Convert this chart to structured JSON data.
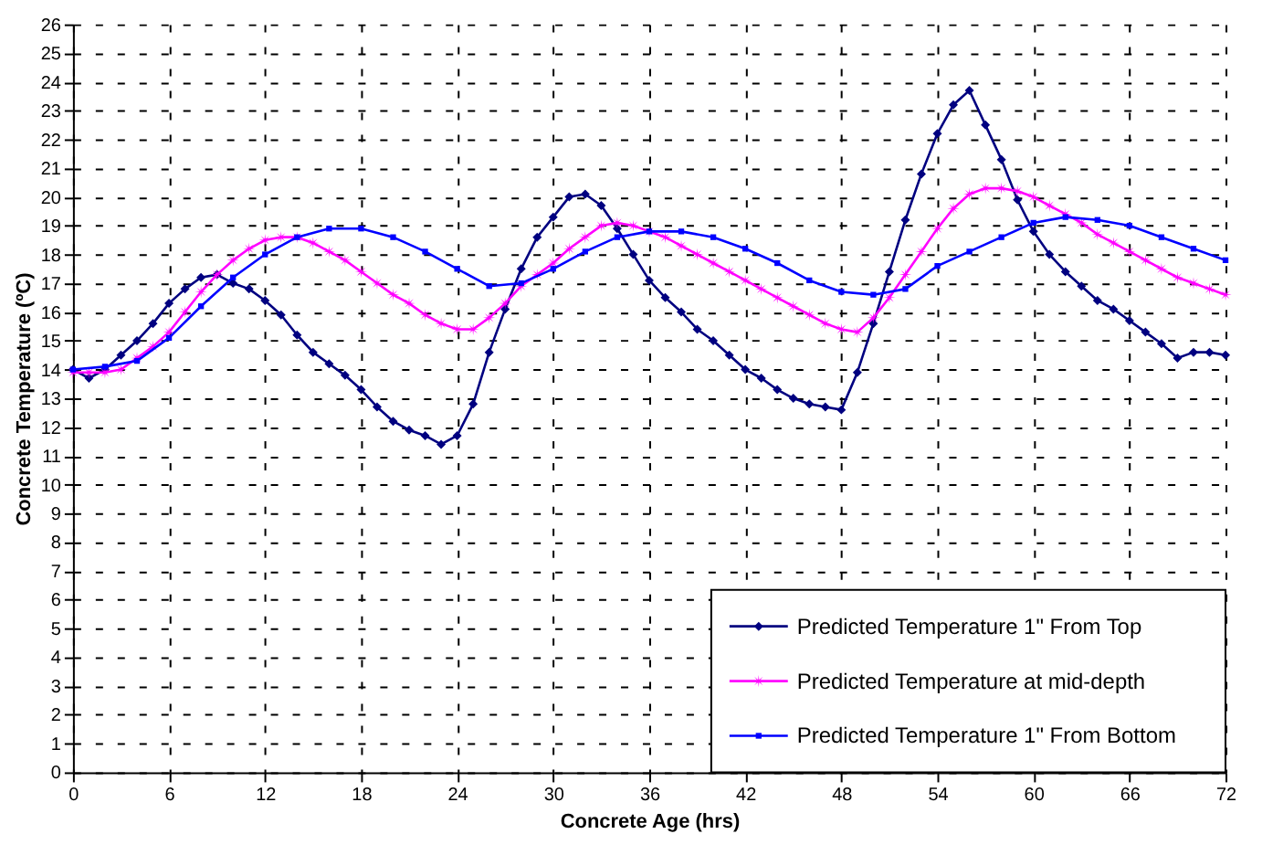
{
  "chart_data": {
    "type": "line",
    "xlabel": "Concrete Age (hrs)",
    "ylabel": "Concrete Temperature (ºC)",
    "xlim": [
      0,
      72
    ],
    "xticks": [
      0,
      6,
      12,
      18,
      24,
      30,
      36,
      42,
      48,
      54,
      60,
      66,
      72
    ],
    "ylim": [
      0,
      26
    ],
    "yticks": [
      0,
      1,
      2,
      3,
      4,
      5,
      6,
      7,
      8,
      9,
      10,
      11,
      12,
      13,
      14,
      15,
      16,
      17,
      18,
      19,
      20,
      21,
      22,
      23,
      24,
      25,
      26
    ],
    "grid": true,
    "legend": "bottom right",
    "line_style": "solid",
    "series": [
      {
        "name": "Predicted Temperature 1\" From Top",
        "color": "#000080",
        "marker": "diamond",
        "x": [
          0,
          1,
          2,
          3,
          4,
          5,
          6,
          7,
          8,
          9,
          10,
          11,
          12,
          13,
          14,
          15,
          16,
          17,
          18,
          19,
          20,
          21,
          22,
          23,
          24,
          25,
          26,
          27,
          28,
          29,
          30,
          31,
          32,
          33,
          34,
          35,
          36,
          37,
          38,
          39,
          40,
          41,
          42,
          43,
          44,
          45,
          46,
          47,
          48,
          49,
          50,
          51,
          52,
          53,
          54,
          55,
          56,
          57,
          58,
          59,
          60,
          61,
          62,
          63,
          64,
          65,
          66,
          67,
          68,
          69,
          70,
          71,
          72
        ],
        "values": [
          14.0,
          13.7,
          14.0,
          14.5,
          15.0,
          15.6,
          16.3,
          16.8,
          17.2,
          17.3,
          17.0,
          16.8,
          16.4,
          15.9,
          15.2,
          14.6,
          14.2,
          13.8,
          13.3,
          12.7,
          12.2,
          11.9,
          11.7,
          11.4,
          11.7,
          12.8,
          14.6,
          16.1,
          17.5,
          18.6,
          19.3,
          20.0,
          20.1,
          19.7,
          18.9,
          18.0,
          17.1,
          16.5,
          16.0,
          15.4,
          15.0,
          14.5,
          14.0,
          13.7,
          13.3,
          13.0,
          12.8,
          12.7,
          12.6,
          13.9,
          15.6,
          17.4,
          19.2,
          20.8,
          22.2,
          23.2,
          23.7,
          22.5,
          21.3,
          19.9,
          18.8,
          18.0,
          17.4,
          16.9,
          16.4,
          16.1,
          15.7,
          15.3,
          14.9,
          14.4,
          14.6,
          14.6,
          14.5
        ]
      },
      {
        "name": "Predicted Temperature at mid-depth",
        "color": "#ff00ff",
        "marker": "star",
        "x": [
          0,
          1,
          2,
          3,
          4,
          5,
          6,
          7,
          8,
          9,
          10,
          11,
          12,
          13,
          14,
          15,
          16,
          17,
          18,
          19,
          20,
          21,
          22,
          23,
          24,
          25,
          26,
          27,
          28,
          29,
          30,
          31,
          32,
          33,
          34,
          35,
          36,
          37,
          38,
          39,
          40,
          41,
          42,
          43,
          44,
          45,
          46,
          47,
          48,
          49,
          50,
          51,
          52,
          53,
          54,
          55,
          56,
          57,
          58,
          59,
          60,
          61,
          62,
          63,
          64,
          65,
          66,
          67,
          68,
          69,
          70,
          71,
          72
        ],
        "values": [
          13.9,
          13.9,
          13.9,
          14.0,
          14.4,
          14.8,
          15.3,
          16.0,
          16.7,
          17.3,
          17.8,
          18.2,
          18.5,
          18.6,
          18.6,
          18.4,
          18.1,
          17.8,
          17.4,
          17.0,
          16.6,
          16.3,
          15.9,
          15.6,
          15.4,
          15.4,
          15.8,
          16.3,
          16.9,
          17.3,
          17.7,
          18.2,
          18.6,
          19.0,
          19.1,
          19.0,
          18.8,
          18.6,
          18.3,
          18.0,
          17.7,
          17.4,
          17.1,
          16.8,
          16.5,
          16.2,
          15.9,
          15.6,
          15.4,
          15.3,
          15.8,
          16.5,
          17.3,
          18.1,
          18.9,
          19.6,
          20.1,
          20.3,
          20.3,
          20.2,
          20.0,
          19.7,
          19.4,
          19.1,
          18.7,
          18.4,
          18.1,
          17.8,
          17.5,
          17.2,
          17.0,
          16.8,
          16.6
        ]
      },
      {
        "name": "Predicted Temperature 1\" From Bottom",
        "color": "#0000ff",
        "marker": "square",
        "x": [
          0,
          2,
          4,
          6,
          8,
          10,
          12,
          14,
          16,
          18,
          20,
          22,
          24,
          26,
          28,
          30,
          32,
          34,
          36,
          38,
          40,
          42,
          44,
          46,
          48,
          50,
          52,
          54,
          56,
          58,
          60,
          62,
          64,
          66,
          68,
          70,
          72
        ],
        "values": [
          14.0,
          14.1,
          14.3,
          15.1,
          16.2,
          17.2,
          18.0,
          18.6,
          18.9,
          18.9,
          18.6,
          18.1,
          17.5,
          16.9,
          17.0,
          17.5,
          18.1,
          18.6,
          18.8,
          18.8,
          18.6,
          18.2,
          17.7,
          17.1,
          16.7,
          16.6,
          16.8,
          17.6,
          18.1,
          18.6,
          19.1,
          19.3,
          19.2,
          19.0,
          18.6,
          18.2,
          17.8
        ]
      }
    ]
  }
}
